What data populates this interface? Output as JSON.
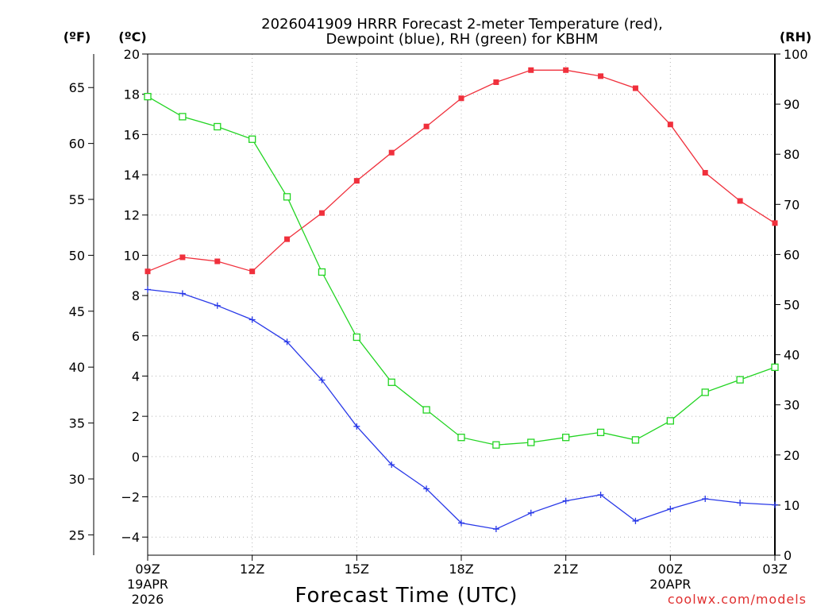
{
  "colors": {
    "temperature": "#f0303c",
    "dewpoint": "#2838e8",
    "rh": "#22d422",
    "credit": "#e03030"
  },
  "chart_data": {
    "type": "line",
    "title": [
      "2026041909 HRRR Forecast 2-meter Temperature (red),",
      "Dewpoint (blue), RH (green) for KBHM"
    ],
    "unit_labels": {
      "fahrenheit": "(ºF)",
      "celsius": "(ºC)",
      "rh": "(RH)"
    },
    "xlabel": "Forecast Time (UTC)",
    "credit": "coolwx.com/models",
    "x": [
      0,
      1,
      2,
      3,
      4,
      5,
      6,
      7,
      8,
      9,
      10,
      11,
      12,
      13,
      14,
      15,
      16,
      17,
      18
    ],
    "x_ticks": [
      {
        "x": 0,
        "label": "09Z",
        "sub": [
          "19APR",
          "2026"
        ]
      },
      {
        "x": 3,
        "label": "12Z",
        "sub": []
      },
      {
        "x": 6,
        "label": "15Z",
        "sub": []
      },
      {
        "x": 9,
        "label": "18Z",
        "sub": []
      },
      {
        "x": 12,
        "label": "21Z",
        "sub": []
      },
      {
        "x": 15,
        "label": "00Z",
        "sub": [
          "20APR"
        ]
      },
      {
        "x": 18,
        "label": "03Z",
        "sub": []
      }
    ],
    "xlim": [
      0,
      18
    ],
    "ylim_celsius": [
      -4.9,
      20
    ],
    "celsius_ticks": [
      20,
      18,
      16,
      14,
      12,
      10,
      8,
      6,
      4,
      2,
      0,
      -2,
      -4
    ],
    "fahrenheit_ticks": [
      65,
      60,
      55,
      50,
      45,
      40,
      35,
      30,
      25
    ],
    "ylim_rh": [
      0,
      100
    ],
    "rh_ticks": [
      100,
      90,
      80,
      70,
      60,
      50,
      40,
      30,
      20,
      10,
      0
    ],
    "grid": true,
    "series": [
      {
        "name": "Temperature (°C)",
        "axis": "celsius",
        "marker": "square-filled",
        "values": [
          9.2,
          9.9,
          9.7,
          9.2,
          10.8,
          12.1,
          13.7,
          15.1,
          16.4,
          17.8,
          18.6,
          19.2,
          19.2,
          18.9,
          18.3,
          16.5,
          14.1,
          12.7,
          11.6
        ]
      },
      {
        "name": "Dewpoint (°C)",
        "axis": "celsius",
        "marker": "plus",
        "values": [
          8.3,
          8.1,
          7.5,
          6.8,
          5.7,
          3.8,
          1.5,
          -0.4,
          -1.6,
          -3.3,
          -3.6,
          -2.8,
          -2.2,
          -1.9,
          -3.2,
          -2.6,
          -2.1,
          -2.3,
          -2.4
        ]
      },
      {
        "name": "RH (%)",
        "axis": "rh",
        "marker": "square-open",
        "values": [
          91.5,
          87.5,
          85.5,
          83.0,
          71.5,
          56.5,
          43.5,
          34.5,
          29.0,
          23.5,
          22.0,
          22.5,
          23.5,
          24.5,
          23.0,
          26.8,
          32.5,
          35.0,
          37.5
        ]
      }
    ]
  }
}
